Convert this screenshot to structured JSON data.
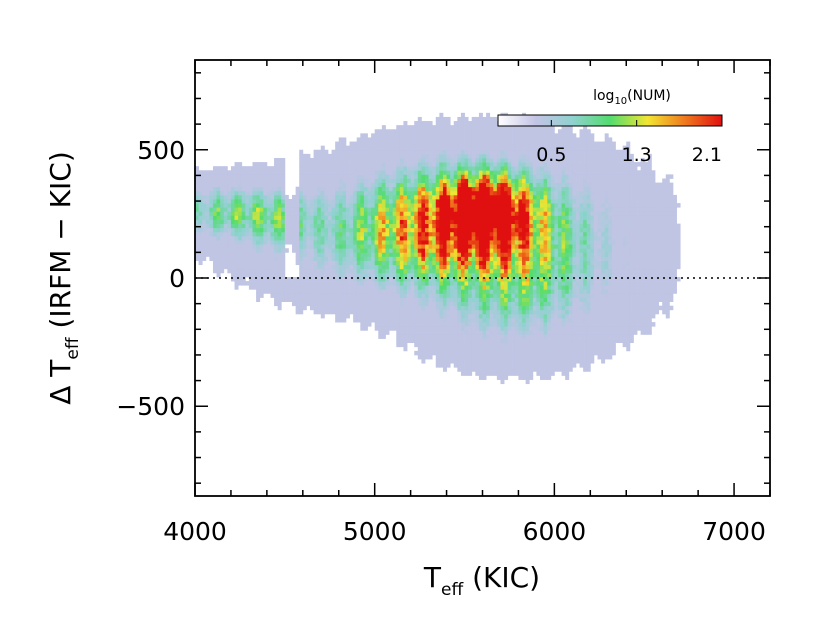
{
  "chart_data": {
    "type": "heatmap",
    "title": "",
    "xlabel": {
      "main": "T",
      "sub": "eff",
      "suffix": " (KIC)"
    },
    "ylabel": {
      "prefix": "Δ T",
      "sub": "eff",
      "suffix": " (IRFM − KIC)"
    },
    "xlim": [
      4000,
      7200
    ],
    "ylim": [
      -850,
      850
    ],
    "x_ticks": [
      {
        "value": 4000,
        "label": "4000"
      },
      {
        "value": 5000,
        "label": "5000"
      },
      {
        "value": 6000,
        "label": "6000"
      },
      {
        "value": 7000,
        "label": "7000"
      }
    ],
    "y_ticks": [
      {
        "value": -500,
        "label": "−500"
      },
      {
        "value": 0,
        "label": "0"
      },
      {
        "value": 500,
        "label": "500"
      }
    ],
    "zero_line": {
      "y": 0,
      "style": "dotted"
    },
    "grid": false,
    "colorbar": {
      "title_main": "log",
      "title_sub": "10",
      "title_suffix": "(NUM)",
      "range": [
        0.0,
        2.1
      ],
      "tick_values": [
        0.5,
        1.3,
        2.1
      ],
      "tick_labels": [
        "0.5",
        "1.3",
        "2.1"
      ],
      "colormap": [
        "#ffffff",
        "#c4c4e6",
        "#8fd2d0",
        "#52dc6e",
        "#f2e632",
        "#f07a1e",
        "#e01010"
      ],
      "placement": "top-right"
    },
    "density_model": {
      "bin_width_x": 20,
      "bin_height_y": 16,
      "components": [
        {
          "x": 5620,
          "y": 260,
          "sx": 150,
          "sy": 85,
          "amp": 2.05
        },
        {
          "x": 5470,
          "y": 230,
          "sx": 330,
          "sy": 150,
          "amp": 1.35
        },
        {
          "x": 5050,
          "y": 170,
          "sx": 430,
          "sy": 140,
          "amp": 0.85
        },
        {
          "x": 5900,
          "y": 140,
          "sx": 380,
          "sy": 190,
          "amp": 0.75
        },
        {
          "x": 5750,
          "y": -80,
          "sx": 300,
          "sy": 140,
          "amp": 0.55
        },
        {
          "x": 4150,
          "y": 260,
          "sx": 200,
          "sy": 70,
          "amp": 0.9
        },
        {
          "x": 4450,
          "y": 230,
          "sx": 150,
          "sy": 75,
          "amp": 0.55
        }
      ],
      "visibility_threshold": 0.05
    }
  }
}
